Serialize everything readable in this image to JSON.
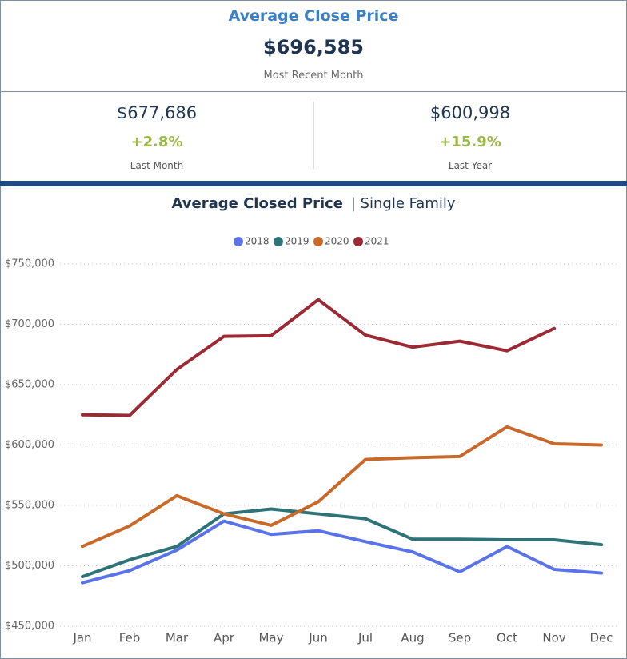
{
  "kpi": {
    "title": "Average Close Price",
    "value": "$696,585",
    "note": "Most Recent Month",
    "left": {
      "value": "$677,686",
      "change": "+2.8%",
      "note": "Last Month"
    },
    "right": {
      "value": "$600,998",
      "change": "+15.9%",
      "note": "Last Year"
    }
  },
  "chart_data": {
    "type": "line",
    "title": "Average Closed Price",
    "title_suffix": "| Single Family",
    "categories": [
      "Jan",
      "Feb",
      "Mar",
      "Apr",
      "May",
      "Jun",
      "Jul",
      "Aug",
      "Sep",
      "Oct",
      "Nov",
      "Dec"
    ],
    "series": [
      {
        "name": "2018",
        "color": "#5b73e8",
        "values": [
          486000,
          496000,
          513000,
          537000,
          526000,
          529000,
          520000,
          511500,
          495000,
          516000,
          497000,
          494000
        ]
      },
      {
        "name": "2019",
        "color": "#2e7378",
        "values": [
          491000,
          505000,
          516000,
          543000,
          547000,
          543000,
          539000,
          522000,
          522000,
          521500,
          521500,
          517500
        ]
      },
      {
        "name": "2020",
        "color": "#c8692a",
        "values": [
          516000,
          533000,
          558000,
          543000,
          533500,
          553000,
          588000,
          589500,
          590500,
          615000,
          601000,
          600000
        ]
      },
      {
        "name": "2021",
        "color": "#9b2a35",
        "values": [
          625000,
          624500,
          662500,
          690000,
          690500,
          720500,
          691000,
          681000,
          686000,
          678000,
          696585,
          null
        ]
      }
    ],
    "ylim": [
      450000,
      750000
    ],
    "yticks": [
      {
        "value": 450000,
        "label": "$450,000"
      },
      {
        "value": 500000,
        "label": "$500,000"
      },
      {
        "value": 550000,
        "label": "$550,000"
      },
      {
        "value": 600000,
        "label": "$600,000"
      },
      {
        "value": 650000,
        "label": "$650,000"
      },
      {
        "value": 700000,
        "label": "$700,000"
      },
      {
        "value": 750000,
        "label": "$750,000"
      }
    ],
    "grid": true,
    "legend": "top"
  }
}
